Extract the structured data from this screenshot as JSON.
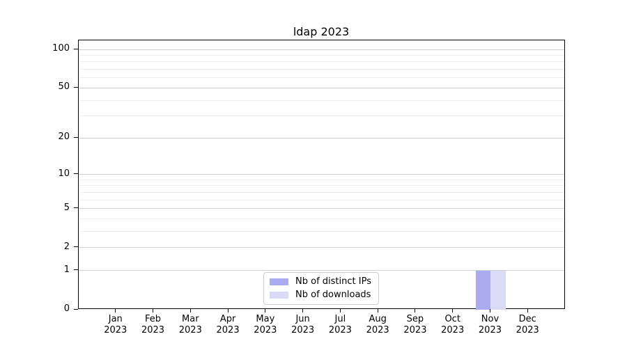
{
  "chart_data": {
    "type": "bar",
    "title": "ldap 2023",
    "categories": [
      "Jan",
      "Feb",
      "Mar",
      "Apr",
      "May",
      "Jun",
      "Jul",
      "Aug",
      "Sep",
      "Oct",
      "Nov",
      "Dec"
    ],
    "x_tick_second_line": "2023",
    "series": [
      {
        "name": "Nb of distinct IPs",
        "color": "#ababf2",
        "values": [
          0,
          0,
          0,
          0,
          0,
          0,
          0,
          0,
          0,
          0,
          1,
          0
        ]
      },
      {
        "name": "Nb of downloads",
        "color": "#dbdbf8",
        "values": [
          0,
          0,
          0,
          0,
          0,
          0,
          0,
          0,
          0,
          0,
          1,
          0
        ]
      }
    ],
    "y_scale": "log1p",
    "ylim": [
      0,
      117.6
    ],
    "y_ticks": [
      0,
      1,
      2,
      5,
      10,
      20,
      50,
      100
    ],
    "y_minor_ticks": [
      3,
      4,
      6,
      7,
      8,
      9,
      30,
      40,
      60,
      70,
      80,
      90
    ],
    "grid": true,
    "legend_position": "lower center",
    "bar_width_fraction": 0.4,
    "colors": {
      "major_grid": "#cfcfcf",
      "minor_grid": "#ececec",
      "axis": "#000000",
      "text": "#000000",
      "legend_border": "#cccccc"
    }
  }
}
